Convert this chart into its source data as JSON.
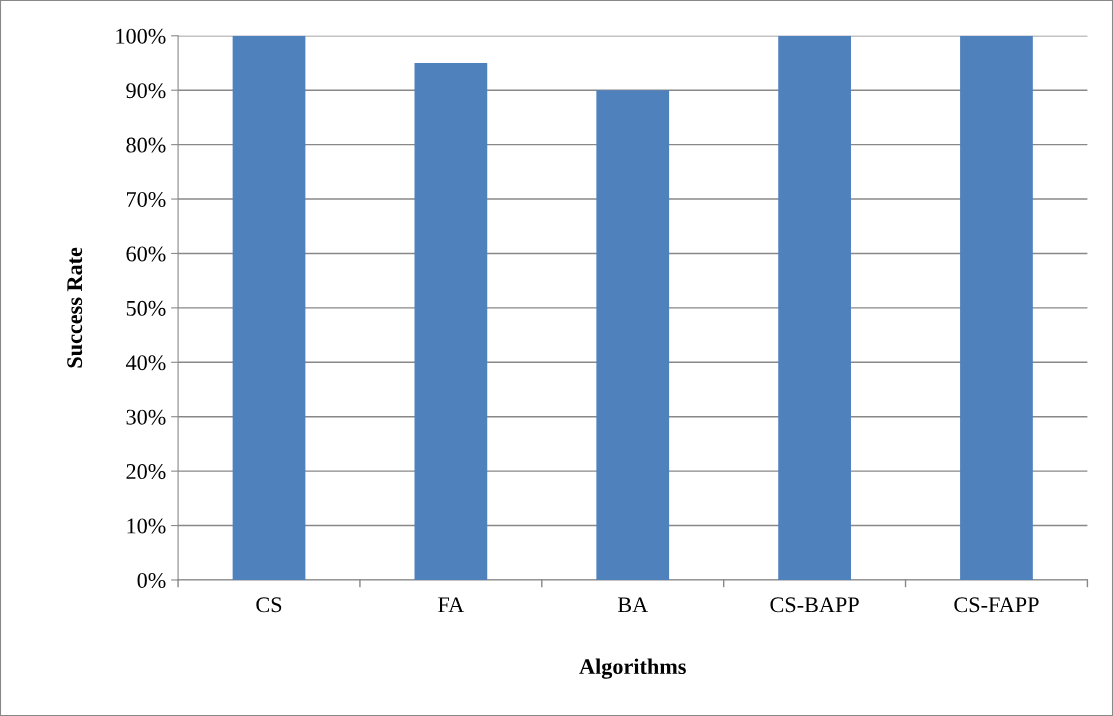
{
  "chart_data": {
    "type": "bar",
    "xlabel": "Algorithms",
    "ylabel": "Success Rate",
    "categories": [
      "CS",
      "FA",
      "BA",
      "CS-BAPP",
      "CS-FAPP"
    ],
    "values": [
      100,
      95,
      90,
      100,
      100
    ],
    "color": "#4f81bd",
    "ylim": [
      0,
      100
    ],
    "yticks": [
      {
        "value": 0,
        "label": "0%"
      },
      {
        "value": 10,
        "label": "10%"
      },
      {
        "value": 20,
        "label": "20%"
      },
      {
        "value": 30,
        "label": "30%"
      },
      {
        "value": 40,
        "label": "40%"
      },
      {
        "value": 50,
        "label": "50%"
      },
      {
        "value": 60,
        "label": "60%"
      },
      {
        "value": 70,
        "label": "70%"
      },
      {
        "value": 80,
        "label": "80%"
      },
      {
        "value": 90,
        "label": "90%"
      },
      {
        "value": 100,
        "label": "100%"
      }
    ],
    "grid": "y",
    "legend": false
  }
}
